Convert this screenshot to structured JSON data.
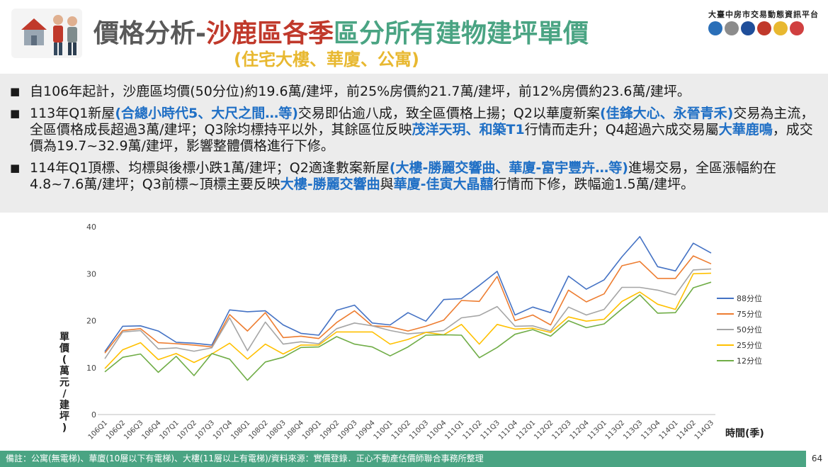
{
  "header": {
    "title_part1": "價格分析-",
    "title_part2": "沙鹿區各季",
    "title_part3": "區分所有建物建坪單價",
    "subtitle": "(住宅大樓、華廈、公寓)",
    "platform_name": "大臺中房市交易動態資訊平台",
    "colors": {
      "title_gray": "#595959",
      "title_red": "#c0392b",
      "title_green": "#4aa483",
      "subtitle_yellow": "#e8b830"
    }
  },
  "bullets": [
    {
      "segments": [
        {
          "text": "自106年起計，沙鹿區均價(50分位)約19.6萬/建坪，前25%房價約21.7萬/建坪，前12%房價約23.6萬/建坪。",
          "highlight": false
        }
      ]
    },
    {
      "segments": [
        {
          "text": "113年Q1新屋",
          "highlight": false
        },
        {
          "text": "(合總小時代5、大尺之間…等)",
          "highlight": true
        },
        {
          "text": "交易即佔逾八成，致全區價格上揚；Q2以華廈新案",
          "highlight": false
        },
        {
          "text": "(佳鋒大心、永晉青禾)",
          "highlight": true
        },
        {
          "text": "交易為主流，全區價格成長超過3萬/建坪；Q3除均標持平以外，其餘區位反映",
          "highlight": false
        },
        {
          "text": "茂洋天玥、和築T1",
          "highlight": true
        },
        {
          "text": "行情而走升；Q4超過六成交易屬",
          "highlight": false
        },
        {
          "text": "大華鹿鳴",
          "highlight": true
        },
        {
          "text": "，成交價為19.7~32.9萬/建坪，影響整體價格進行下修。",
          "highlight": false
        }
      ]
    },
    {
      "segments": [
        {
          "text": "114年Q1頂標、均標與後標小跌1萬/建坪；Q2適逢數案新屋",
          "highlight": false
        },
        {
          "text": "(大樓-勝麗交響曲、華廈-富宇豐卉…等)",
          "highlight": true
        },
        {
          "text": "進場交易，全區漲幅約在4.8~7.6萬/建坪；Q3前標~頂標主要反映",
          "highlight": false
        },
        {
          "text": "大樓-勝麗交響曲",
          "highlight": true
        },
        {
          "text": "與",
          "highlight": false
        },
        {
          "text": "華廈-佳寅大晶囍",
          "highlight": true
        },
        {
          "text": "行情而下修，跌幅逾1.5萬/建坪。",
          "highlight": false
        }
      ]
    }
  ],
  "footer": {
    "note": "備註：公寓(無電梯)、華廈(10層以下有電梯)、大樓(11層以上有電梯)/資料來源：實價登錄．正心不動產估價師聯合事務所整理",
    "page_number": "64"
  },
  "chart_data": {
    "type": "line",
    "ylabel": "單價(萬元/建坪)",
    "xlabel": "時間(季)",
    "ylim": [
      0,
      40
    ],
    "yticks": [
      0,
      10,
      20,
      30,
      40
    ],
    "grid": false,
    "legend_position": "right",
    "categories": [
      "106Q1",
      "106Q2",
      "106Q3",
      "106Q4",
      "107Q1",
      "107Q2",
      "107Q3",
      "107Q4",
      "108Q1",
      "108Q2",
      "108Q3",
      "108Q4",
      "109Q1",
      "109Q2",
      "109Q3",
      "109Q4",
      "110Q1",
      "110Q2",
      "110Q3",
      "110Q4",
      "111Q1",
      "111Q2",
      "111Q3",
      "111Q4",
      "112Q1",
      "112Q2",
      "112Q3",
      "112Q4",
      "113Q1",
      "113Q2",
      "113Q3",
      "113Q4",
      "114Q1",
      "114Q2",
      "114Q3"
    ],
    "series": [
      {
        "name": "88分位",
        "color": "#4472c4",
        "values": [
          13.4,
          18.8,
          18.9,
          17.8,
          15.4,
          15.2,
          14.8,
          22.3,
          21.9,
          22.1,
          19.1,
          17.3,
          16.9,
          22.2,
          23.3,
          19.5,
          19.1,
          21.7,
          19.9,
          24.5,
          24.7,
          27.5,
          30.5,
          21.2,
          22.9,
          21.7,
          29.5,
          26.7,
          28.7,
          33.6,
          37.9,
          31.5,
          30.6,
          36.5,
          34.4
        ]
      },
      {
        "name": "75分位",
        "color": "#ed7d31",
        "values": [
          13.1,
          17.9,
          18.3,
          15.3,
          15.1,
          14.8,
          14.4,
          21.3,
          17.8,
          21.7,
          16.4,
          16.7,
          16.2,
          19.6,
          22.1,
          18.9,
          18.7,
          17.8,
          18.8,
          20.1,
          24.3,
          24.1,
          29.4,
          20.0,
          21.2,
          19.1,
          26.5,
          24.0,
          25.7,
          31.7,
          32.6,
          29.0,
          29.0,
          33.8,
          32.1
        ]
      },
      {
        "name": "50分位",
        "color": "#a5a5a5",
        "values": [
          11.9,
          17.6,
          17.9,
          14.0,
          14.2,
          13.5,
          14.2,
          20.6,
          13.6,
          19.7,
          15.0,
          15.5,
          15.1,
          18.3,
          19.5,
          18.9,
          17.9,
          17.2,
          17.5,
          17.9,
          20.6,
          21.1,
          23.0,
          18.8,
          18.9,
          17.8,
          22.9,
          21.2,
          22.4,
          27.1,
          27.1,
          26.5,
          25.5,
          30.8,
          31.0
        ]
      },
      {
        "name": "25分位",
        "color": "#ffc000",
        "values": [
          9.8,
          13.8,
          15.3,
          11.7,
          13.0,
          11.1,
          12.9,
          15.2,
          11.8,
          15.0,
          12.9,
          14.8,
          14.8,
          17.6,
          17.6,
          17.6,
          15.0,
          16.0,
          17.5,
          17.0,
          19.2,
          15.0,
          19.2,
          18.2,
          18.4,
          17.5,
          20.8,
          19.9,
          20.3,
          24.1,
          26.1,
          23.5,
          22.4,
          30.0,
          30.1
        ]
      },
      {
        "name": "12分位",
        "color": "#70ad47",
        "values": [
          9.1,
          12.2,
          12.9,
          9.0,
          12.4,
          8.3,
          13.0,
          11.8,
          7.3,
          11.2,
          12.2,
          14.3,
          14.4,
          16.6,
          15.0,
          14.4,
          12.5,
          14.4,
          16.9,
          17.0,
          16.9,
          12.1,
          14.3,
          17.1,
          18.1,
          16.7,
          20.0,
          18.5,
          19.3,
          22.5,
          25.5,
          21.6,
          21.7,
          27.0,
          28.2
        ]
      }
    ]
  }
}
